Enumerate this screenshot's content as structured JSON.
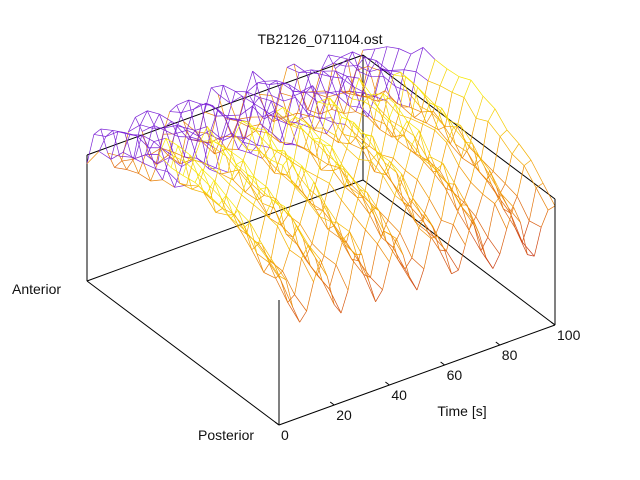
{
  "chart_data": {
    "type": "surface",
    "title": "TB2126_071104.ost",
    "xlabel": "Time [s]",
    "ylabels": {
      "back": "Anterior",
      "front": "Posterior"
    },
    "x_ticks": [
      "0",
      "20",
      "40",
      "60",
      "80",
      "100"
    ],
    "xlim": [
      0,
      100
    ],
    "grid": false,
    "legend": "none",
    "colormap": [
      "#7b22d6",
      "#c02a14",
      "#e06a10",
      "#f4a300",
      "#f6e800"
    ],
    "surface": {
      "description_rows": "y from Anterior (0) to Posterior (1)",
      "time_samples": [
        0,
        2.5,
        5,
        7.5,
        10,
        12.5,
        15,
        17.5,
        20,
        22.5,
        25,
        27.5,
        30,
        32.5,
        35,
        37.5,
        40,
        42.5,
        45,
        47.5,
        50,
        52.5,
        55,
        57.5,
        60,
        62.5,
        65,
        67.5,
        70,
        72.5,
        75,
        77.5,
        80,
        82.5,
        85,
        87.5,
        90,
        92.5,
        95,
        97.5,
        100
      ],
      "y_samples": [
        0,
        0.0625,
        0.125,
        0.1875,
        0.25,
        0.3125,
        0.375,
        0.4375,
        0.5,
        0.5625,
        0.625,
        0.6875,
        0.75,
        0.8125,
        0.875,
        0.9375,
        1
      ],
      "base_level": 0.55,
      "breathing_period_s": 14,
      "breathing_amplitude": 0.12,
      "anterior_posterior_bulge": 0.25
    }
  }
}
